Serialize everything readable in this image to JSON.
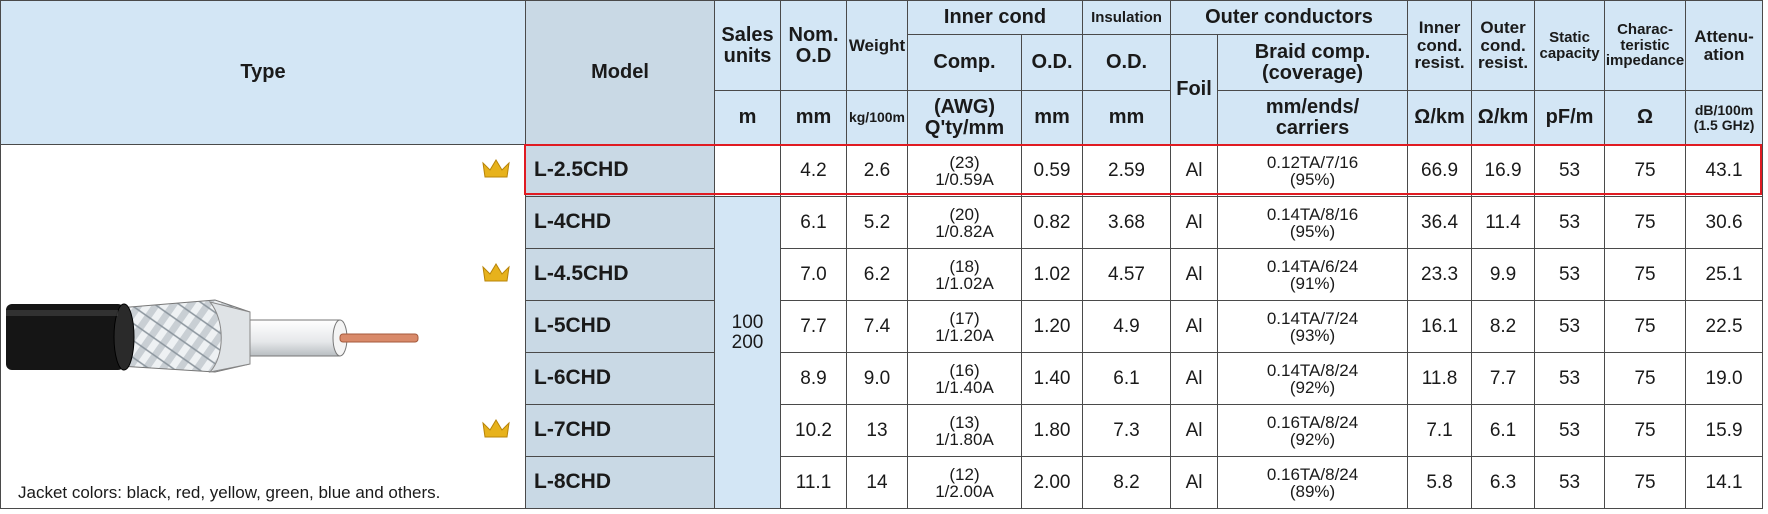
{
  "header": {
    "type": "Type",
    "model": "Model",
    "sales_units": "Sales\nunits",
    "nom_od": "Nom.\nO.D",
    "weight": "Weight",
    "inner_cond": "Inner cond",
    "insulation": "Insulation",
    "outer_conductors": "Outer conductors",
    "comp": "Comp.",
    "inner_od": "O.D.",
    "insulation_od": "O.D.",
    "foil": "Foil",
    "braid_comp": "Braid comp.\n(coverage)",
    "inner_resist": "Inner\ncond.\nresist.",
    "outer_resist": "Outer\ncond.\nresist.",
    "static_capacity": "Static\ncapacity",
    "impedance": "Charac-\nteristic\nimpedance",
    "attenuation": "Attenu-\nation",
    "units": {
      "sales_units": "m",
      "nom_od": "mm",
      "weight": "kg/100m",
      "comp": "(AWG)\nQ'ty/mm",
      "inner_od": "mm",
      "insulation_od": "mm",
      "braid_comp": "mm/ends/\ncarriers",
      "inner_resist": "Ω/km",
      "outer_resist": "Ω/km",
      "static_capacity": "pF/m",
      "impedance": "Ω",
      "attenuation": "dB/100m\n(1.5 GHz)"
    }
  },
  "table": {
    "sales_units": "100\n200",
    "jacket_colors": "Jacket colors: black, red, yellow, green, blue and others.",
    "rows": [
      {
        "model": "L-2.5CHD",
        "nom_od": "4.2",
        "weight": "2.6",
        "awg": "(23)",
        "qty": "1/0.59A",
        "inner_od": "0.59",
        "insulation_od": "2.59",
        "foil": "Al",
        "braid": "0.12TA/7/16",
        "coverage": "(95%)",
        "inner_resist": "66.9",
        "outer_resist": "16.9",
        "static_capacity": "53",
        "impedance": "75",
        "attenuation": "43.1"
      },
      {
        "model": "L-4CHD",
        "nom_od": "6.1",
        "weight": "5.2",
        "awg": "(20)",
        "qty": "1/0.82A",
        "inner_od": "0.82",
        "insulation_od": "3.68",
        "foil": "Al",
        "braid": "0.14TA/8/16",
        "coverage": "(95%)",
        "inner_resist": "36.4",
        "outer_resist": "11.4",
        "static_capacity": "53",
        "impedance": "75",
        "attenuation": "30.6"
      },
      {
        "model": "L-4.5CHD",
        "nom_od": "7.0",
        "weight": "6.2",
        "awg": "(18)",
        "qty": "1/1.02A",
        "inner_od": "1.02",
        "insulation_od": "4.57",
        "foil": "Al",
        "braid": "0.14TA/6/24",
        "coverage": "(91%)",
        "inner_resist": "23.3",
        "outer_resist": "9.9",
        "static_capacity": "53",
        "impedance": "75",
        "attenuation": "25.1"
      },
      {
        "model": "L-5CHD",
        "nom_od": "7.7",
        "weight": "7.4",
        "awg": "(17)",
        "qty": "1/1.20A",
        "inner_od": "1.20",
        "insulation_od": "4.9",
        "foil": "Al",
        "braid": "0.14TA/7/24",
        "coverage": "(93%)",
        "inner_resist": "16.1",
        "outer_resist": "8.2",
        "static_capacity": "53",
        "impedance": "75",
        "attenuation": "22.5"
      },
      {
        "model": "L-6CHD",
        "nom_od": "8.9",
        "weight": "9.0",
        "awg": "(16)",
        "qty": "1/1.40A",
        "inner_od": "1.40",
        "insulation_od": "6.1",
        "foil": "Al",
        "braid": "0.14TA/8/24",
        "coverage": "(92%)",
        "inner_resist": "11.8",
        "outer_resist": "7.7",
        "static_capacity": "53",
        "impedance": "75",
        "attenuation": "19.0"
      },
      {
        "model": "L-7CHD",
        "nom_od": "10.2",
        "weight": "13",
        "awg": "(13)",
        "qty": "1/1.80A",
        "inner_od": "1.80",
        "insulation_od": "7.3",
        "foil": "Al",
        "braid": "0.16TA/8/24",
        "coverage": "(92%)",
        "inner_resist": "7.1",
        "outer_resist": "6.1",
        "static_capacity": "53",
        "impedance": "75",
        "attenuation": "15.9"
      },
      {
        "model": "L-8CHD",
        "nom_od": "11.1",
        "weight": "14",
        "awg": "(12)",
        "qty": "1/2.00A",
        "inner_od": "2.00",
        "insulation_od": "8.2",
        "foil": "Al",
        "braid": "0.16TA/8/24",
        "coverage": "(89%)",
        "inner_resist": "5.8",
        "outer_resist": "6.3",
        "static_capacity": "53",
        "impedance": "75",
        "attenuation": "14.1"
      }
    ]
  }
}
